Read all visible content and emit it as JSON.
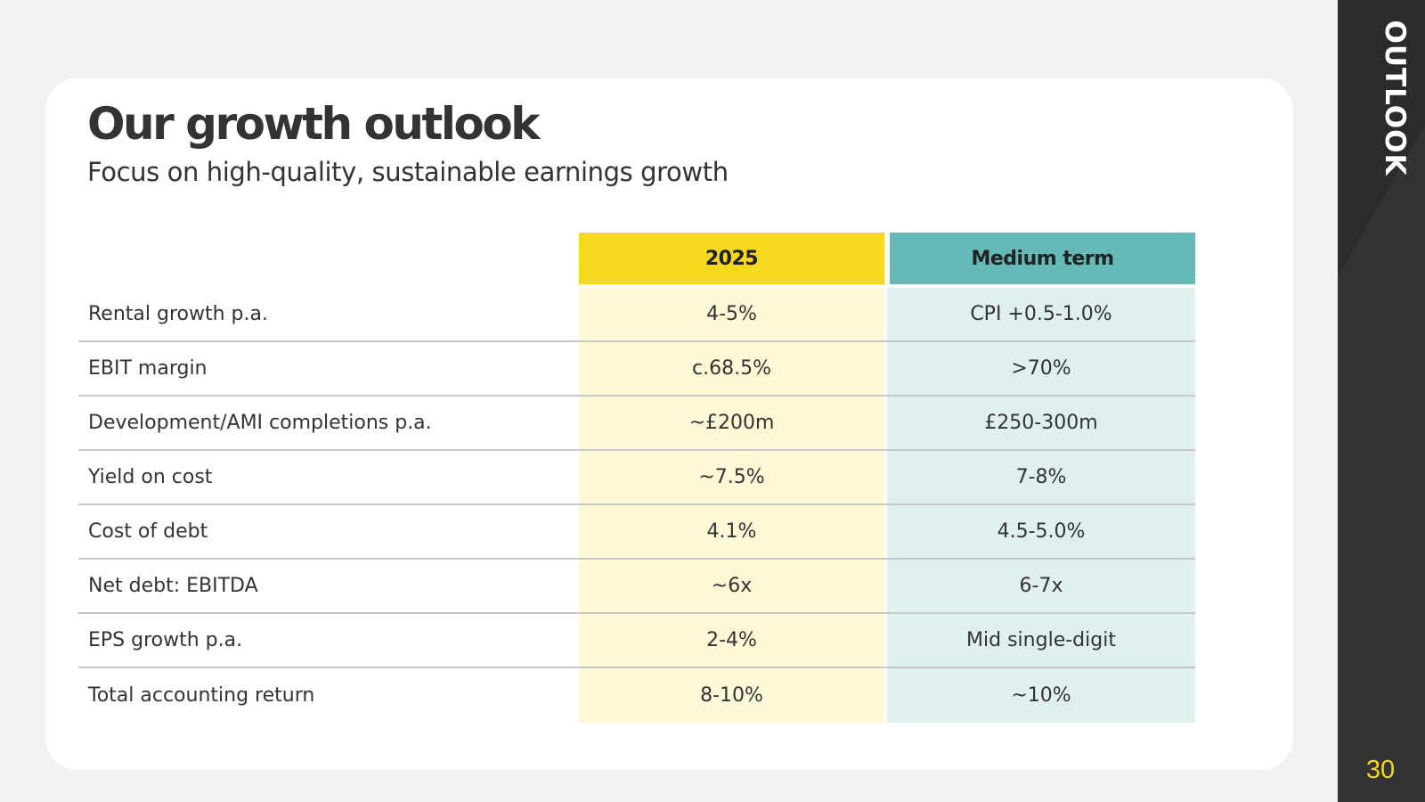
{
  "sidebar": {
    "label": "OUTLOOK",
    "page_number": "30"
  },
  "header": {
    "title": "Our growth outlook",
    "subtitle": "Focus on high-quality, sustainable earnings growth"
  },
  "table": {
    "columns": [
      "2025",
      "Medium term"
    ],
    "rows": [
      {
        "label": "Rental growth p.a.",
        "y2025": "4-5%",
        "medium": "CPI +0.5-1.0%"
      },
      {
        "label": "EBIT margin",
        "y2025": "c.68.5%",
        "medium": ">70%"
      },
      {
        "label": "Development/AMI completions p.a.",
        "y2025": "~£200m",
        "medium": "£250-300m"
      },
      {
        "label": "Yield on cost",
        "y2025": "~7.5%",
        "medium": "7-8%"
      },
      {
        "label": "Cost of debt",
        "y2025": "4.1%",
        "medium": "4.5-5.0%"
      },
      {
        "label": "Net debt: EBITDA",
        "y2025": "~6x",
        "medium": "6-7x"
      },
      {
        "label": "EPS growth p.a.",
        "y2025": "2-4%",
        "medium": "Mid single-digit"
      },
      {
        "label": "Total accounting return",
        "y2025": "8-10%",
        "medium": "~10%"
      }
    ]
  },
  "colors": {
    "accent_yellow": "#f5d81f",
    "accent_teal": "#65b9b6",
    "yellow_tint": "#fdf8d6",
    "teal_tint": "#dff0ef",
    "sidebar_bg": "#2b2b2b"
  }
}
